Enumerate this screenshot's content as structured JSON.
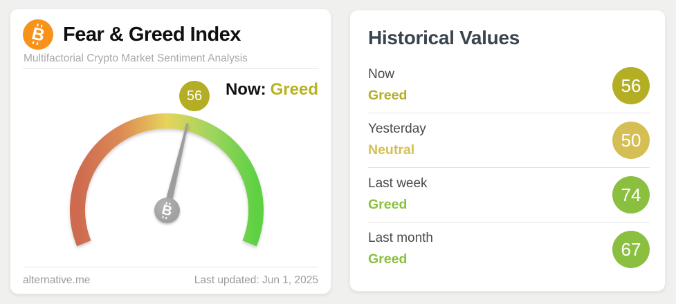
{
  "left_card": {
    "title": "Fear & Greed Index",
    "subtitle": "Multifactorial Crypto Market Sentiment Analysis",
    "now_label": "Now:",
    "now_value": "Greed",
    "now_value_color": "#b8b21e",
    "footer_left": "alternative.me",
    "footer_right": "Last updated: Jun 1, 2025"
  },
  "header_icon": {
    "name": "bitcoin-icon",
    "color": "#f7931a",
    "symbol": "B"
  },
  "gauge": {
    "value": 56,
    "badge_color": "#b3ae24",
    "gradient": [
      "#cd6a50",
      "#dd8b55",
      "#e7d45b",
      "#9fd45f",
      "#5ed143"
    ],
    "needle_color": "#9d9d9d",
    "hub_symbol": "B"
  },
  "right_card": {
    "title": "Historical Values",
    "rows": [
      {
        "label": "Now",
        "classification": "Greed",
        "value": "56",
        "color": "#b3ae24"
      },
      {
        "label": "Yesterday",
        "classification": "Neutral",
        "value": "50",
        "color": "#d5bf55"
      },
      {
        "label": "Last week",
        "classification": "Greed",
        "value": "74",
        "color": "#8bbf3f"
      },
      {
        "label": "Last month",
        "classification": "Greed",
        "value": "67",
        "color": "#8bbf3f"
      }
    ]
  }
}
